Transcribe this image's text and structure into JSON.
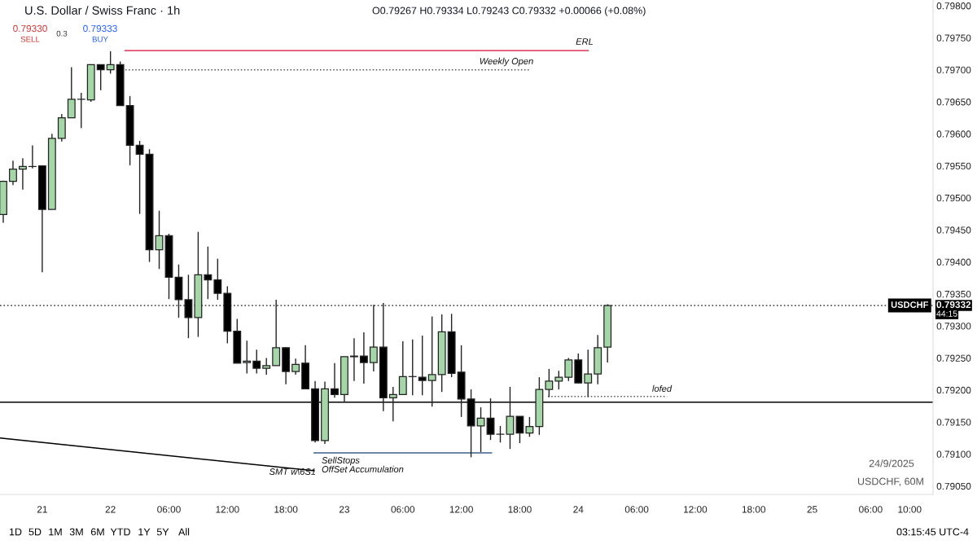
{
  "chart_data": {
    "type": "candlestick",
    "title": "U.S. Dollar / Swiss Franc · 1h",
    "subtitle": "O0.79267 H0.79334 L0.79243 C0.79332 +0.00066 (+0.08%)",
    "xlim": [
      "2025-09-21T12:40",
      "2025-09-25T12:24"
    ],
    "xticks": [
      {
        "value": "2025-09-21T17:00",
        "label": "21"
      },
      {
        "value": "2025-09-22T00:00",
        "label": "22"
      },
      {
        "value": "2025-09-22T06:00",
        "label": "06:00"
      },
      {
        "value": "2025-09-22T12:00",
        "label": "12:00"
      },
      {
        "value": "2025-09-22T18:00",
        "label": "18:00"
      },
      {
        "value": "2025-09-23T00:00",
        "label": "23"
      },
      {
        "value": "2025-09-23T06:00",
        "label": "06:00"
      },
      {
        "value": "2025-09-23T12:00",
        "label": "12:00"
      },
      {
        "value": "2025-09-23T18:00",
        "label": "18:00"
      },
      {
        "value": "2025-09-24T00:00",
        "label": "24"
      },
      {
        "value": "2025-09-24T06:00",
        "label": "06:00"
      },
      {
        "value": "2025-09-24T12:00",
        "label": "12:00"
      },
      {
        "value": "2025-09-24T18:00",
        "label": "18:00"
      },
      {
        "value": "2025-09-25T00:00",
        "label": "25"
      },
      {
        "value": "2025-09-25T06:00",
        "label": "06:00"
      },
      {
        "value": "2025-09-25T10:00",
        "label": "10:00"
      }
    ],
    "ylim": [
      0.79037,
      0.79809
    ],
    "yticks": [
      {
        "value": 0.7905,
        "label": "0.79050"
      },
      {
        "value": 0.791,
        "label": "0.79100"
      },
      {
        "value": 0.7915,
        "label": "0.79150"
      },
      {
        "value": 0.792,
        "label": "0.79200"
      },
      {
        "value": 0.7925,
        "label": "0.79250"
      },
      {
        "value": 0.793,
        "label": "0.79300"
      },
      {
        "value": 0.7935,
        "label": "0.79350"
      },
      {
        "value": 0.794,
        "label": "0.79400"
      },
      {
        "value": 0.7945,
        "label": "0.79450"
      },
      {
        "value": 0.795,
        "label": "0.79500"
      },
      {
        "value": 0.7955,
        "label": "0.79550"
      },
      {
        "value": 0.796,
        "label": "0.79600"
      },
      {
        "value": 0.7965,
        "label": "0.79650"
      },
      {
        "value": 0.797,
        "label": "0.79700"
      },
      {
        "value": 0.7975,
        "label": "0.79750"
      },
      {
        "value": 0.798,
        "label": "0.79800"
      }
    ],
    "grid": false,
    "legend": false,
    "series": [
      {
        "type": "candlestick",
        "x": [
          "2025-09-21T13:00",
          "2025-09-21T14:00",
          "2025-09-21T15:00",
          "2025-09-21T16:00",
          "2025-09-21T17:00",
          "2025-09-21T18:00",
          "2025-09-21T19:00",
          "2025-09-21T20:00",
          "2025-09-21T21:00",
          "2025-09-21T22:00",
          "2025-09-21T23:00",
          "2025-09-22T00:00",
          "2025-09-22T01:00",
          "2025-09-22T02:00",
          "2025-09-22T03:00",
          "2025-09-22T04:00",
          "2025-09-22T05:00",
          "2025-09-22T06:00",
          "2025-09-22T07:00",
          "2025-09-22T08:00",
          "2025-09-22T09:00",
          "2025-09-22T10:00",
          "2025-09-22T11:00",
          "2025-09-22T12:00",
          "2025-09-22T13:00",
          "2025-09-22T14:00",
          "2025-09-22T15:00",
          "2025-09-22T16:00",
          "2025-09-22T17:00",
          "2025-09-22T18:00",
          "2025-09-22T19:00",
          "2025-09-22T20:00",
          "2025-09-22T21:00",
          "2025-09-22T22:00",
          "2025-09-22T23:00",
          "2025-09-23T00:00",
          "2025-09-23T01:00",
          "2025-09-23T02:00",
          "2025-09-23T03:00",
          "2025-09-23T04:00",
          "2025-09-23T05:00",
          "2025-09-23T06:00",
          "2025-09-23T07:00",
          "2025-09-23T08:00",
          "2025-09-23T09:00",
          "2025-09-23T10:00",
          "2025-09-23T11:00",
          "2025-09-23T12:00",
          "2025-09-23T13:00",
          "2025-09-23T14:00",
          "2025-09-23T15:00",
          "2025-09-23T16:00",
          "2025-09-23T17:00",
          "2025-09-23T18:00",
          "2025-09-23T19:00",
          "2025-09-23T20:00",
          "2025-09-23T21:00",
          "2025-09-23T22:00",
          "2025-09-23T23:00",
          "2025-09-24T00:00",
          "2025-09-24T01:00",
          "2025-09-24T02:00",
          "2025-09-24T03:00"
        ],
        "colors": [
          "#a5d6a7",
          "#a5d6a7",
          "#a5d6a7",
          "#a5d6a7",
          "#000000",
          "#a5d6a7",
          "#a5d6a7",
          "#a5d6a7",
          "#a5d6a7",
          "#a5d6a7",
          "#000000",
          "#a5d6a7",
          "#000000",
          "#000000",
          "#000000",
          "#000000",
          "#a5d6a7",
          "#000000",
          "#000000",
          "#000000",
          "#a5d6a7",
          "#000000",
          "#000000",
          "#000000",
          "#000000",
          "#a5d6a7",
          "#000000",
          "#a5d6a7",
          "#a5d6a7",
          "#000000",
          "#a5d6a7",
          "#000000",
          "#000000",
          "#a5d6a7",
          "#000000",
          "#a5d6a7",
          "#a5d6a7",
          "#000000",
          "#a5d6a7",
          "#000000",
          "#a5d6a7",
          "#a5d6a7",
          "#a5d6a7",
          "#000000",
          "#a5d6a7",
          "#a5d6a7",
          "#000000",
          "#000000",
          "#000000",
          "#a5d6a7",
          "#000000",
          "#a5d6a7",
          "#a5d6a7",
          "#000000",
          "#a5d6a7",
          "#a5d6a7",
          "#a5d6a7",
          "#a5d6a7",
          "#a5d6a7",
          "#000000",
          "#a5d6a7",
          "#a5d6a7",
          "#a5d6a7"
        ],
        "ohlc": [
          [
            0.79474,
            0.79527,
            0.79461,
            0.79526
          ],
          [
            0.79526,
            0.79558,
            0.7952,
            0.79545
          ],
          [
            0.79545,
            0.79562,
            0.79513,
            0.79549
          ],
          [
            0.79549,
            0.79582,
            0.79546,
            0.79549
          ],
          [
            0.7955,
            0.7955,
            0.79384,
            0.79482
          ],
          [
            0.79482,
            0.796,
            0.79482,
            0.79593
          ],
          [
            0.79593,
            0.79631,
            0.79588,
            0.79625
          ],
          [
            0.79625,
            0.79704,
            0.79625,
            0.79654
          ],
          [
            0.79654,
            0.79664,
            0.79609,
            0.79654
          ],
          [
            0.79653,
            0.79708,
            0.7965,
            0.79708
          ],
          [
            0.79708,
            0.79708,
            0.79668,
            0.797
          ],
          [
            0.797,
            0.79729,
            0.79694,
            0.79708
          ],
          [
            0.79708,
            0.79713,
            0.79644,
            0.79644
          ],
          [
            0.79644,
            0.79659,
            0.79551,
            0.79582
          ],
          [
            0.79582,
            0.79589,
            0.79475,
            0.79568
          ],
          [
            0.79568,
            0.79576,
            0.794,
            0.79419
          ],
          [
            0.79419,
            0.7948,
            0.79389,
            0.79441
          ],
          [
            0.79441,
            0.79444,
            0.79342,
            0.79376
          ],
          [
            0.79376,
            0.79396,
            0.79313,
            0.79341
          ],
          [
            0.79341,
            0.7938,
            0.79281,
            0.79313
          ],
          [
            0.79313,
            0.79447,
            0.79283,
            0.7938
          ],
          [
            0.7938,
            0.79424,
            0.79342,
            0.79372
          ],
          [
            0.79372,
            0.79405,
            0.79341,
            0.79351
          ],
          [
            0.79351,
            0.79362,
            0.79273,
            0.79292
          ],
          [
            0.79292,
            0.79311,
            0.79242,
            0.79242
          ],
          [
            0.79243,
            0.79277,
            0.79226,
            0.79245
          ],
          [
            0.79245,
            0.79263,
            0.79226,
            0.79234
          ],
          [
            0.79234,
            0.7925,
            0.79224,
            0.79238
          ],
          [
            0.79238,
            0.79341,
            0.79238,
            0.79266
          ],
          [
            0.79266,
            0.79267,
            0.79209,
            0.79229
          ],
          [
            0.79229,
            0.79249,
            0.79224,
            0.7924
          ],
          [
            0.79242,
            0.7927,
            0.79202,
            0.79202
          ],
          [
            0.79202,
            0.79214,
            0.79118,
            0.79121
          ],
          [
            0.79121,
            0.79213,
            0.79116,
            0.79202
          ],
          [
            0.79202,
            0.79242,
            0.79188,
            0.79193
          ],
          [
            0.79193,
            0.79252,
            0.79181,
            0.79252
          ],
          [
            0.79252,
            0.79281,
            0.79214,
            0.79253
          ],
          [
            0.79253,
            0.7929,
            0.7921,
            0.79243
          ],
          [
            0.79243,
            0.79333,
            0.79229,
            0.79267
          ],
          [
            0.79267,
            0.79336,
            0.79167,
            0.79188
          ],
          [
            0.79188,
            0.79205,
            0.79151,
            0.79193
          ],
          [
            0.79193,
            0.79276,
            0.79193,
            0.79221
          ],
          [
            0.79221,
            0.79279,
            0.79192,
            0.79221
          ],
          [
            0.7922,
            0.79285,
            0.79192,
            0.79215
          ],
          [
            0.79215,
            0.79315,
            0.79174,
            0.79224
          ],
          [
            0.79224,
            0.79318,
            0.79197,
            0.79291
          ],
          [
            0.79291,
            0.79319,
            0.7922,
            0.79226
          ],
          [
            0.79228,
            0.7927,
            0.79158,
            0.79186
          ],
          [
            0.79186,
            0.79201,
            0.79095,
            0.79144
          ],
          [
            0.79144,
            0.79173,
            0.79103,
            0.79156
          ],
          [
            0.79156,
            0.79187,
            0.79122,
            0.79131
          ],
          [
            0.79131,
            0.79144,
            0.79118,
            0.79131
          ],
          [
            0.79131,
            0.79205,
            0.79108,
            0.79159
          ],
          [
            0.79159,
            0.79159,
            0.79117,
            0.79133
          ],
          [
            0.79133,
            0.79158,
            0.79127,
            0.79143
          ],
          [
            0.79143,
            0.7922,
            0.7913,
            0.79201
          ],
          [
            0.79201,
            0.79233,
            0.79189,
            0.79214
          ],
          [
            0.79214,
            0.7923,
            0.79201,
            0.7922
          ],
          [
            0.7922,
            0.7925,
            0.79214,
            0.79247
          ],
          [
            0.79247,
            0.79257,
            0.79211,
            0.79211
          ],
          [
            0.79211,
            0.79263,
            0.79189,
            0.79225
          ],
          [
            0.79225,
            0.79286,
            0.79209,
            0.79266
          ],
          [
            0.79267,
            0.79334,
            0.79243,
            0.79332
          ]
        ]
      },
      {
        "type": "line",
        "color": "#e0506a",
        "line_style": "solid",
        "x": [
          "2025-09-22T01:30",
          "2025-09-24T01:00"
        ],
        "values": [
          0.7973,
          0.7973
        ]
      },
      {
        "type": "line",
        "color": "#555555",
        "line_style": "dotted",
        "x": [
          "2025-09-22T01:12",
          "2025-09-23T19:06"
        ],
        "values": [
          0.797,
          0.797
        ]
      },
      {
        "type": "line",
        "color": "#555555",
        "line_style": "dotted",
        "x": [
          "2025-09-23T20:54",
          "2025-09-24T09:06"
        ],
        "values": [
          0.7919,
          0.7919
        ]
      },
      {
        "type": "line",
        "color": "#3b5f8a",
        "line_style": "solid",
        "x": [
          "2025-09-22T20:54",
          "2025-09-23T15:06"
        ],
        "values": [
          0.79102,
          0.79102
        ]
      },
      {
        "type": "line",
        "color": "#000000",
        "line_style": "solid",
        "x": [
          "2025-09-21T12:42",
          "2025-09-22T20:54"
        ],
        "values": [
          0.79125,
          0.79074
        ]
      }
    ],
    "ref_lines": [
      {
        "axis": "y",
        "value": 0.79332,
        "label": "USDCHF",
        "color": "#555555",
        "line_style": "dotted"
      },
      {
        "axis": "y",
        "value": 0.79181,
        "color": "#000000",
        "line_style": "solid"
      }
    ],
    "annotations": [
      "ERL",
      "Weekly Open",
      "lofed",
      "SellStops",
      "OffSet Accumulation",
      "SMT w\\6S1",
      "0.79330",
      "SELL",
      "0.3",
      "0.79333",
      "BUY",
      "24/9/2025",
      "USDCHF, 60M",
      "1D",
      "5D",
      "1M",
      "3M",
      "6M",
      "YTD",
      "1Y",
      "5Y",
      "All",
      "03:15:45 UTC-4",
      "0.79332",
      "44:15"
    ]
  }
}
